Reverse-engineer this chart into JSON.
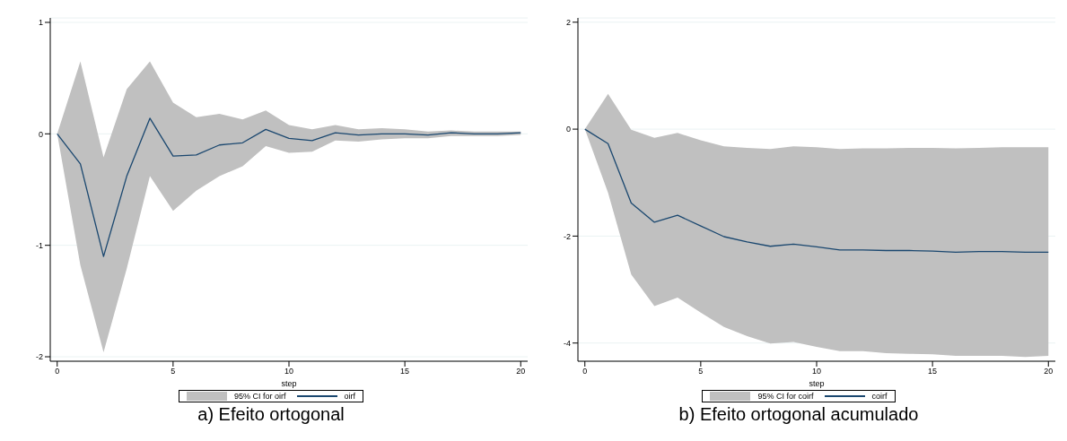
{
  "chart_data": [
    {
      "type": "line",
      "title": "a) Efeito ortogonal",
      "xlabel": "step",
      "annotations": [
        "95% CI for oirf"
      ],
      "x": [
        0,
        1,
        2,
        3,
        4,
        5,
        6,
        7,
        8,
        9,
        10,
        11,
        12,
        13,
        14,
        15,
        16,
        17,
        18,
        19,
        20
      ],
      "xlim": [
        -0.3,
        20.3
      ],
      "xticks": [
        0,
        5,
        10,
        15,
        20
      ],
      "ylim": [
        -2.04,
        1.04
      ],
      "yticks": [
        -2,
        -1,
        0,
        1
      ],
      "grid": "y",
      "legend": "bottom",
      "series": [
        {
          "name": "oirf",
          "color": "#1a476f",
          "values": [
            0,
            -0.27,
            -1.1,
            -0.38,
            0.14,
            -0.2,
            -0.19,
            -0.1,
            -0.08,
            0.04,
            -0.04,
            -0.06,
            0.01,
            -0.01,
            0,
            0,
            -0.01,
            0.01,
            0,
            0,
            0.01
          ],
          "lower": [
            0,
            -1.18,
            -1.96,
            -1.21,
            -0.38,
            -0.69,
            -0.51,
            -0.38,
            -0.29,
            -0.11,
            -0.17,
            -0.16,
            -0.06,
            -0.07,
            -0.05,
            -0.04,
            -0.04,
            -0.02,
            -0.02,
            -0.02,
            -0.01
          ],
          "upper": [
            0,
            0.65,
            -0.21,
            0.4,
            0.65,
            0.28,
            0.15,
            0.18,
            0.13,
            0.21,
            0.08,
            0.04,
            0.08,
            0.04,
            0.05,
            0.04,
            0.02,
            0.03,
            0.02,
            0.02,
            0.02
          ]
        }
      ]
    },
    {
      "type": "line",
      "title": "b) Efeito ortogonal acumulado",
      "xlabel": "step",
      "annotations": [
        "95% CI for coirf"
      ],
      "x": [
        0,
        1,
        2,
        3,
        4,
        5,
        6,
        7,
        8,
        9,
        10,
        11,
        12,
        13,
        14,
        15,
        16,
        17,
        18,
        19,
        20
      ],
      "xlim": [
        -0.3,
        20.3
      ],
      "xticks": [
        0,
        5,
        10,
        15,
        20
      ],
      "ylim": [
        -4.34,
        2.08
      ],
      "yticks": [
        -4,
        -2,
        0,
        2
      ],
      "grid": "y",
      "legend": "bottom",
      "series": [
        {
          "name": "coirf",
          "color": "#1a476f",
          "values": [
            0,
            -0.27,
            -1.38,
            -1.74,
            -1.61,
            -1.81,
            -2.01,
            -2.11,
            -2.19,
            -2.15,
            -2.2,
            -2.26,
            -2.26,
            -2.27,
            -2.27,
            -2.28,
            -2.3,
            -2.29,
            -2.29,
            -2.3,
            -2.3
          ],
          "lower": [
            0,
            -1.19,
            -2.72,
            -3.31,
            -3.15,
            -3.43,
            -3.7,
            -3.87,
            -4.01,
            -3.98,
            -4.07,
            -4.15,
            -4.15,
            -4.19,
            -4.2,
            -4.21,
            -4.24,
            -4.24,
            -4.24,
            -4.26,
            -4.24
          ],
          "upper": [
            0,
            0.66,
            -0.01,
            -0.16,
            -0.07,
            -0.21,
            -0.32,
            -0.35,
            -0.37,
            -0.32,
            -0.34,
            -0.37,
            -0.36,
            -0.36,
            -0.35,
            -0.35,
            -0.36,
            -0.35,
            -0.34,
            -0.34,
            -0.34
          ]
        }
      ]
    }
  ]
}
